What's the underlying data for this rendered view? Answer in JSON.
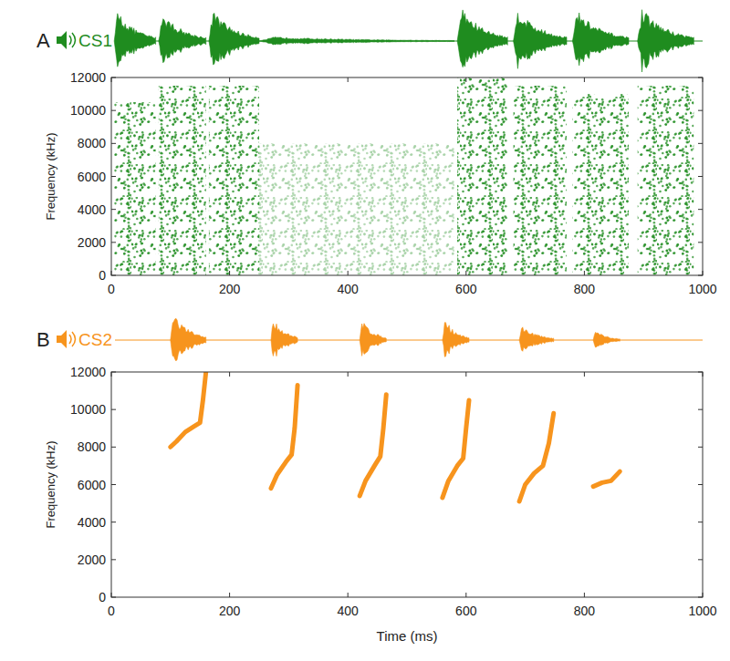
{
  "chart_data": [
    {
      "type": "spectrogram",
      "label": "A",
      "title": "CS1",
      "color": "#1f8c1f",
      "y_label": "Frequency (kHz)",
      "xlim": [
        0,
        1000
      ],
      "xticks": [
        0,
        200,
        400,
        600,
        800,
        1000
      ],
      "ylim": [
        0,
        12000
      ],
      "yticks": [
        0,
        2000,
        4000,
        6000,
        8000,
        10000,
        12000
      ],
      "bursts": [
        {
          "start": 5,
          "end": 75,
          "fmax": 10500,
          "amplitude": 0.9
        },
        {
          "start": 80,
          "end": 160,
          "fmax": 11500,
          "amplitude": 0.85
        },
        {
          "start": 165,
          "end": 250,
          "fmax": 11500,
          "amplitude": 0.9
        },
        {
          "start": 250,
          "end": 580,
          "fmax": 8000,
          "amplitude": 0.12
        },
        {
          "start": 585,
          "end": 670,
          "fmax": 12000,
          "amplitude": 1
        },
        {
          "start": 680,
          "end": 770,
          "fmax": 11500,
          "amplitude": 0.95
        },
        {
          "start": 780,
          "end": 875,
          "fmax": 11000,
          "amplitude": 0.9
        },
        {
          "start": 890,
          "end": 985,
          "fmax": 11500,
          "amplitude": 0.95
        }
      ]
    },
    {
      "type": "line",
      "label": "B",
      "title": "CS2",
      "color": "#f7941d",
      "y_label": "Frequency (kHz)",
      "x_label": "Time (ms)",
      "xlim": [
        0,
        1000
      ],
      "xticks": [
        0,
        200,
        400,
        600,
        800,
        1000
      ],
      "ylim": [
        0,
        12000
      ],
      "yticks": [
        0,
        2000,
        4000,
        6000,
        8000,
        10000,
        12000
      ],
      "series": [
        {
          "x": [
            100,
            110,
            125,
            140,
            150,
            155,
            160
          ],
          "values": [
            8000,
            8300,
            8800,
            9100,
            9300,
            10500,
            12000
          ],
          "amplitude": 1
        },
        {
          "x": [
            270,
            280,
            295,
            305,
            310,
            315
          ],
          "values": [
            5800,
            6500,
            7200,
            7600,
            9000,
            11300
          ],
          "amplitude": 0.85
        },
        {
          "x": [
            420,
            430,
            445,
            455,
            460,
            465
          ],
          "values": [
            5400,
            6200,
            7000,
            7500,
            9000,
            10800
          ],
          "amplitude": 0.8
        },
        {
          "x": [
            560,
            570,
            585,
            595,
            600,
            605
          ],
          "values": [
            5300,
            6200,
            7000,
            7400,
            9000,
            10500
          ],
          "amplitude": 0.8
        },
        {
          "x": [
            690,
            700,
            715,
            730,
            740,
            748
          ],
          "values": [
            5100,
            6000,
            6600,
            7000,
            8200,
            9800
          ],
          "amplitude": 0.55
        },
        {
          "x": [
            815,
            830,
            845,
            860
          ],
          "values": [
            5900,
            6100,
            6200,
            6700
          ],
          "amplitude": 0.35
        }
      ]
    }
  ]
}
